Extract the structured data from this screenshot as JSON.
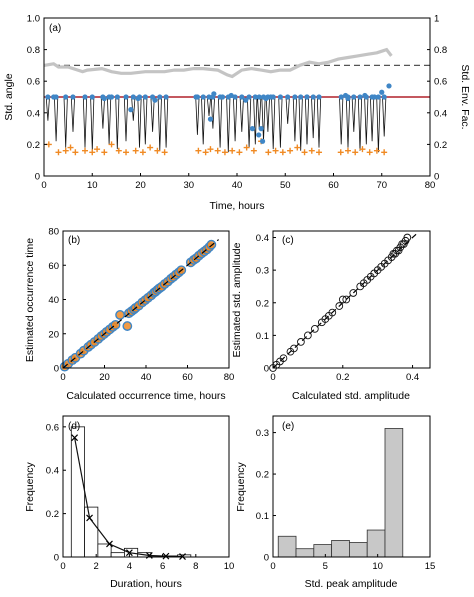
{
  "chart_data": [
    {
      "id": "a",
      "type": "line",
      "panel_label": "(a)",
      "xlabel": "Time, hours",
      "ylabel": "Std. angle",
      "ylabel_right": "Std. Env. Fac.",
      "xlim": [
        0,
        80
      ],
      "ylim": [
        0,
        1
      ],
      "ylim_right": [
        0,
        1
      ],
      "xticks": [
        "0",
        "10",
        "20",
        "30",
        "40",
        "50",
        "60",
        "70",
        "80"
      ],
      "yticks": [
        "0",
        "0.2",
        "0.4",
        "0.6",
        "0.8",
        "1.0"
      ],
      "yticks_right": [
        "0",
        "0.2",
        "0.4",
        "0.6",
        "0.8",
        "1"
      ],
      "hline_solid": 0.5,
      "hline_dashed": 0.7,
      "envelope": {
        "x": [
          0,
          2,
          3,
          5,
          7,
          8,
          9,
          12,
          14,
          16,
          18,
          21,
          23,
          25,
          27,
          29,
          31,
          33,
          36,
          38,
          39,
          41,
          43,
          45,
          47,
          49,
          51,
          53,
          55,
          57,
          59,
          61,
          63,
          65,
          67,
          69,
          70,
          71,
          72
        ],
        "y": [
          0.7,
          0.71,
          0.69,
          0.69,
          0.67,
          0.66,
          0.67,
          0.68,
          0.66,
          0.65,
          0.65,
          0.66,
          0.66,
          0.66,
          0.67,
          0.67,
          0.68,
          0.68,
          0.67,
          0.64,
          0.63,
          0.67,
          0.68,
          0.67,
          0.66,
          0.67,
          0.67,
          0.7,
          0.72,
          0.71,
          0.72,
          0.74,
          0.75,
          0.76,
          0.77,
          0.78,
          0.79,
          0.8,
          0.76
        ]
      },
      "events_start": [
        0.8,
        2.5,
        4.5,
        6.0,
        8.5,
        10.0,
        12.2,
        13.5,
        15.2,
        17.0,
        18.5,
        19.8,
        21.0,
        22.5,
        24.0,
        25.3,
        31.8,
        33.0,
        34.2,
        35.0,
        36.5,
        38.2,
        39.6,
        41.0,
        42.5,
        43.8,
        44.6,
        45.5,
        46.4,
        47.5,
        49.0,
        50.5,
        52.0,
        53.2,
        54.5,
        55.8,
        57.0,
        61.6,
        63.0,
        64.2,
        65.5,
        66.8,
        68.0,
        69.3,
        70.5
      ],
      "events_estimated": [
        0.8,
        2.5,
        4.6,
        6.0,
        8.4,
        10.1,
        12.3,
        13.6,
        15.2,
        17.0,
        18.6,
        19.8,
        21.1,
        22.5,
        24.0,
        25.2,
        32.0,
        33.1,
        34.2,
        35.1,
        36.4,
        38.3,
        39.6,
        41.0,
        42.4,
        43.9,
        44.6,
        45.6,
        46.5,
        47.4,
        49.0,
        50.4,
        52.1,
        53.2,
        54.6,
        55.8,
        57.1,
        61.7,
        63.1,
        64.1,
        65.6,
        66.9,
        68.0,
        69.2,
        70.6
      ],
      "dip_bottoms": [
        0.35,
        0.22,
        0.18,
        0.28,
        0.18,
        0.16,
        0.3,
        0.2,
        0.17,
        0.22,
        0.35,
        0.18,
        0.2,
        0.28,
        0.16,
        0.18,
        0.26,
        0.2,
        0.38,
        0.3,
        0.18,
        0.15,
        0.22,
        0.28,
        0.18,
        0.2,
        0.3,
        0.22,
        0.28,
        0.17,
        0.18,
        0.33,
        0.22,
        0.16,
        0.2,
        0.24,
        0.18,
        0.2,
        0.18,
        0.28,
        0.16,
        0.2,
        0.22,
        0.15,
        0.25
      ],
      "peak_markers": {
        "x": [
          2.0,
          12.5,
          14.0,
          18.0,
          19.5,
          23.0,
          31.5,
          34.5,
          35.2,
          37.0,
          38.8,
          41.8,
          43.2,
          44.5,
          45.0,
          45.3,
          46.0,
          47.0,
          54.5,
          62.5,
          63.0,
          66.5,
          68.5,
          70.0,
          71.5
        ],
        "y": [
          0.5,
          0.49,
          0.5,
          0.42,
          0.49,
          0.48,
          0.5,
          0.36,
          0.52,
          0.5,
          0.51,
          0.48,
          0.3,
          0.26,
          0.3,
          0.22,
          0.49,
          0.5,
          0.5,
          0.51,
          0.49,
          0.51,
          0.5,
          0.53,
          0.57
        ]
      },
      "floor_markers": {
        "x": [
          1.0,
          3.0,
          4.5,
          5.5,
          6.5,
          8.5,
          10.0,
          11.0,
          12.5,
          14.0,
          15.5,
          17.0,
          19.0,
          20.5,
          22.0,
          23.5,
          25.0,
          32.0,
          33.5,
          34.5,
          36.0,
          37.5,
          39.0,
          40.5,
          42.0,
          43.5,
          45.0,
          46.5,
          48.0,
          49.5,
          51.0,
          52.5,
          54.0,
          55.5,
          57.0,
          61.5,
          63.0,
          64.5,
          66.0,
          67.5,
          69.0,
          70.5
        ],
        "y": [
          0.2,
          0.15,
          0.16,
          0.18,
          0.15,
          0.16,
          0.15,
          0.17,
          0.15,
          0.2,
          0.16,
          0.15,
          0.16,
          0.15,
          0.18,
          0.16,
          0.15,
          0.16,
          0.15,
          0.17,
          0.16,
          0.15,
          0.16,
          0.15,
          0.18,
          0.16,
          0.22,
          0.15,
          0.16,
          0.15,
          0.16,
          0.18,
          0.15,
          0.16,
          0.15,
          0.15,
          0.16,
          0.15,
          0.17,
          0.15,
          0.16,
          0.15
        ]
      },
      "colors": {
        "signal": "#111111",
        "marker_blue": "#3f86c6",
        "marker_orange": "#f08a24",
        "hline": "#b0202a",
        "envelope": "#c4c4c4",
        "dashed": "#555555"
      }
    },
    {
      "id": "b",
      "type": "scatter",
      "panel_label": "(b)",
      "xlabel": "Calculated occurrence time, hours",
      "ylabel": "Estimated occurrence time",
      "xlim": [
        0,
        80
      ],
      "ylim": [
        0,
        80
      ],
      "xticks": [
        "0",
        "20",
        "40",
        "60",
        "80"
      ],
      "yticks": [
        "0",
        "20",
        "40",
        "60",
        "80"
      ],
      "x": [
        0.8,
        2.5,
        4.5,
        6.0,
        8.5,
        10.0,
        12.2,
        13.5,
        15.2,
        17.0,
        18.5,
        19.8,
        21.0,
        22.5,
        24.0,
        25.3,
        31.8,
        33.0,
        34.2,
        35.0,
        36.5,
        38.2,
        39.6,
        41.0,
        42.5,
        43.8,
        44.6,
        45.5,
        46.4,
        47.5,
        49.0,
        50.5,
        52.0,
        53.2,
        54.5,
        55.8,
        57.0,
        61.6,
        63.0,
        64.2,
        65.5,
        66.8,
        68.0,
        69.3,
        70.5,
        71.5,
        31.0,
        27.5
      ],
      "y": [
        0.8,
        2.5,
        4.6,
        6.0,
        8.4,
        10.1,
        12.3,
        13.6,
        15.2,
        17.0,
        18.6,
        19.8,
        21.1,
        22.5,
        24.0,
        25.2,
        32.0,
        33.1,
        34.2,
        35.1,
        36.4,
        38.3,
        39.6,
        41.0,
        42.4,
        43.9,
        44.6,
        45.6,
        46.5,
        47.4,
        49.0,
        50.4,
        52.1,
        53.2,
        54.6,
        55.8,
        57.1,
        61.7,
        63.1,
        64.1,
        65.6,
        66.9,
        68.0,
        69.2,
        70.6,
        72.0,
        24.5,
        31.0
      ],
      "diagonal": true,
      "colors": {
        "marker_edge": "#3f86c6",
        "marker_fill": "#f08a24"
      }
    },
    {
      "id": "c",
      "type": "scatter",
      "panel_label": "(c)",
      "xlabel": "Calculated std. amplitude",
      "ylabel": "Estimated std. amplitude",
      "xlim": [
        0,
        0.45
      ],
      "ylim": [
        0,
        0.42
      ],
      "xticks": [
        "0",
        "0.2",
        "0.4"
      ],
      "yticks": [
        "0",
        "0.1",
        "0.2",
        "0.3",
        "0.4"
      ],
      "x": [
        0.0,
        0.01,
        0.02,
        0.03,
        0.05,
        0.06,
        0.08,
        0.1,
        0.12,
        0.14,
        0.15,
        0.16,
        0.17,
        0.19,
        0.2,
        0.21,
        0.23,
        0.25,
        0.26,
        0.27,
        0.28,
        0.29,
        0.3,
        0.31,
        0.32,
        0.33,
        0.34,
        0.345,
        0.35,
        0.355,
        0.36,
        0.365,
        0.37,
        0.375,
        0.38,
        0.385
      ],
      "y": [
        0.0,
        0.01,
        0.02,
        0.03,
        0.05,
        0.06,
        0.08,
        0.1,
        0.12,
        0.14,
        0.15,
        0.16,
        0.17,
        0.19,
        0.21,
        0.21,
        0.23,
        0.25,
        0.26,
        0.27,
        0.28,
        0.29,
        0.3,
        0.31,
        0.32,
        0.33,
        0.34,
        0.35,
        0.35,
        0.36,
        0.36,
        0.37,
        0.38,
        0.38,
        0.39,
        0.4
      ],
      "diagonal": true,
      "colors": {
        "marker_edge": "#111111"
      }
    },
    {
      "id": "d",
      "type": "bar",
      "panel_label": "(d)",
      "xlabel": "Duration, hours",
      "ylabel": "Frequency",
      "xlim": [
        0,
        10
      ],
      "ylim": [
        0,
        0.65
      ],
      "xticks": [
        "0",
        "2",
        "4",
        "6",
        "8",
        "10"
      ],
      "yticks": [
        "0",
        "0.2",
        "0.4",
        "0.6"
      ],
      "bin_edges": [
        0.5,
        1.3,
        2.1,
        2.9,
        3.7,
        4.5,
        5.3,
        6.1,
        6.9,
        7.7
      ],
      "values": [
        0.6,
        0.23,
        0.06,
        0.02,
        0.04,
        0.02,
        0.005,
        0.005,
        0.01
      ],
      "line": {
        "x": [
          0.7,
          1.6,
          2.8,
          4.0,
          5.2,
          6.2,
          7.2
        ],
        "y": [
          0.55,
          0.18,
          0.06,
          0.02,
          0.007,
          0.004,
          0.002
        ]
      },
      "colors": {
        "bar_fill": "#ffffff",
        "bar_edge": "#111111",
        "line": "#111111"
      }
    },
    {
      "id": "e",
      "type": "bar",
      "panel_label": "(e)",
      "xlabel": "Std. peak amplitude",
      "ylabel": "Frequency",
      "xlim": [
        0,
        15
      ],
      "ylim": [
        0,
        0.34
      ],
      "xticks": [
        "0",
        "5",
        "10",
        "15"
      ],
      "yticks": [
        "0",
        "0.1",
        "0.2",
        "0.3"
      ],
      "bin_edges": [
        0.5,
        2.2,
        3.9,
        5.6,
        7.3,
        9.0,
        10.7,
        12.4,
        14.1
      ],
      "values": [
        0.05,
        0.02,
        0.03,
        0.04,
        0.035,
        0.065,
        0.31,
        0.0
      ],
      "colors": {
        "bar_fill": "#c8c8c8",
        "bar_edge": "#333333"
      }
    }
  ]
}
